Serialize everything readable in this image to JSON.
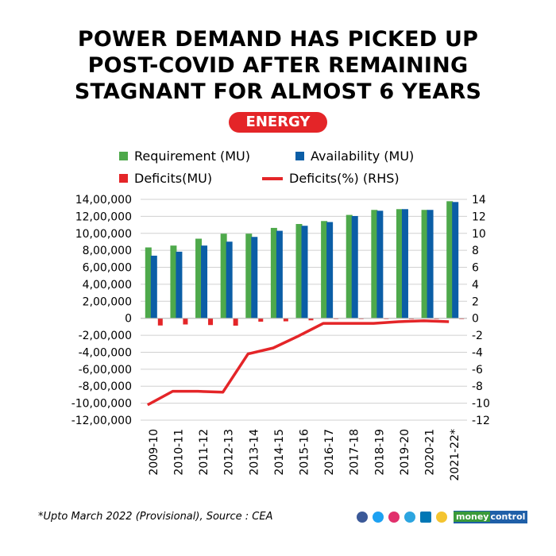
{
  "title": [
    "POWER DEMAND HAS PICKED UP",
    "POST-COVID AFTER REMAINING",
    "STAGNANT FOR ALMOST 6 YEARS"
  ],
  "badge": "ENERGY",
  "footnote": "*Upto March 2022 (Provisional), Source : CEA",
  "brand": {
    "part1": "money",
    "part2": "control"
  },
  "social_icons": [
    "facebook-icon",
    "twitter-icon",
    "instagram-icon",
    "telegram-icon",
    "linkedin-icon",
    "koo-icon"
  ],
  "chart_data": {
    "type": "bar",
    "title": "",
    "categories": [
      "2009-10",
      "2010-11",
      "2011-12",
      "2012-13",
      "2013-14",
      "2014-15",
      "2015-16",
      "2016-17",
      "2017-18",
      "2018-19",
      "2019-20",
      "2020-21",
      "2021-22*"
    ],
    "series": [
      {
        "name": "Requirement (MU)",
        "type": "bar",
        "axis": "left",
        "color": "#4ea94b",
        "values": [
          834000,
          856000,
          937000,
          996000,
          996000,
          1064000,
          1110000,
          1145000,
          1217000,
          1276000,
          1285000,
          1276000,
          1378000
        ]
      },
      {
        "name": "Availability (MU)",
        "type": "bar",
        "axis": "left",
        "color": "#0b5ea6",
        "values": [
          737000,
          784000,
          856000,
          902000,
          958000,
          1030000,
          1089000,
          1133000,
          1204000,
          1266000,
          1285000,
          1276000,
          1369000
        ]
      },
      {
        "name": "Deficits(MU)",
        "type": "bar",
        "axis": "left",
        "color": "#e42528",
        "values": [
          -85000,
          -73000,
          -80000,
          -87000,
          -40000,
          -36000,
          -24000,
          -8000,
          -9000,
          -8000,
          -3000,
          -2000,
          -5000
        ]
      },
      {
        "name": "Deficits(%) (RHS)",
        "type": "line",
        "axis": "right",
        "color": "#e42528",
        "values": [
          -10.2,
          -8.6,
          -8.6,
          -8.7,
          -4.2,
          -3.5,
          -2.1,
          -0.6,
          -0.6,
          -0.6,
          -0.4,
          -0.3,
          -0.4
        ]
      }
    ],
    "left_ticks": [
      "14,00,000",
      "12,00,000",
      "10,00,000",
      "8,00,000",
      "6,00,000",
      "4,00,000",
      "2,00,000",
      "0",
      "-2,00,000",
      "-4,00,000",
      "-6,00,000",
      "-8,00,000",
      "-10,00,000",
      "-12,00,000"
    ],
    "right_ticks": [
      "14",
      "12",
      "10",
      "8",
      "6",
      "4",
      "2",
      "0",
      "-2",
      "-4",
      "-6",
      "-8",
      "-10",
      "-12"
    ],
    "ylim_left": [
      -1200000,
      1400000
    ],
    "ylim_right": [
      -12,
      14
    ],
    "grid": true,
    "legend_position": "top"
  }
}
